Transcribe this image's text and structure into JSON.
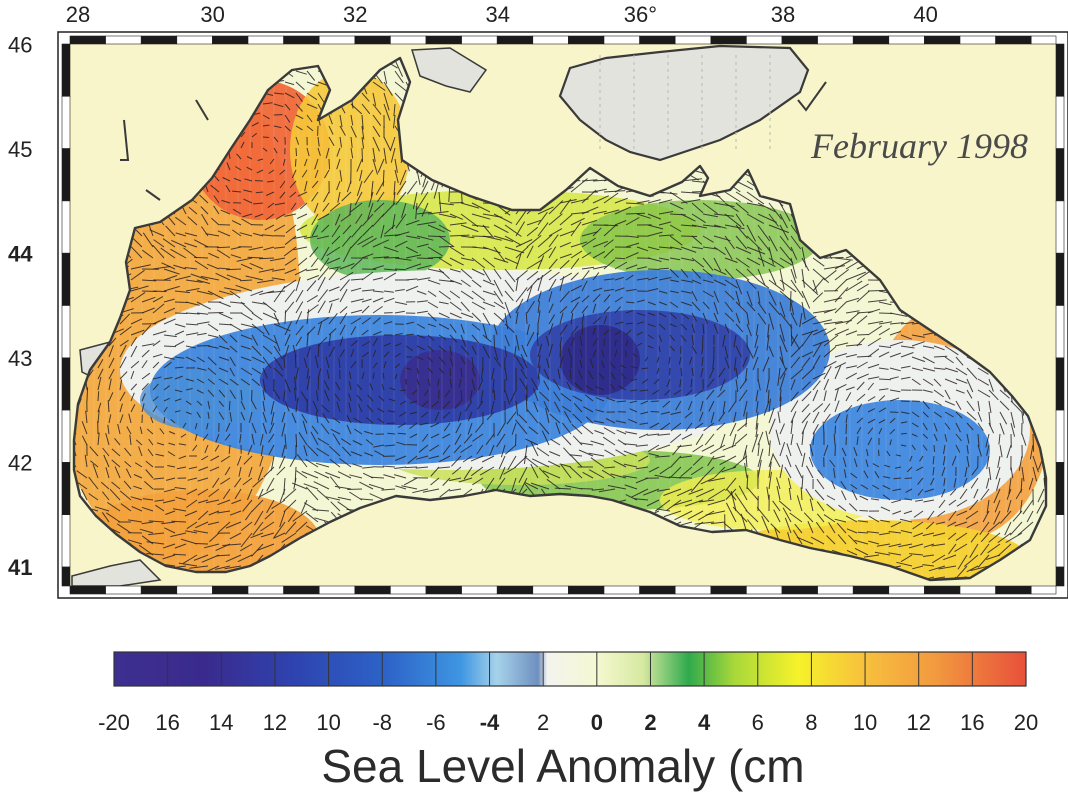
{
  "map": {
    "region": "Black Sea",
    "date_label": "February 1998",
    "lon_ticks": [
      {
        "value": 28,
        "label": "28"
      },
      {
        "value": 30,
        "label": "30"
      },
      {
        "value": 32,
        "label": "32"
      },
      {
        "value": 34,
        "label": "34"
      },
      {
        "value": 36,
        "label": "36°"
      },
      {
        "value": 38,
        "label": "38"
      },
      {
        "value": 40,
        "label": "40"
      }
    ],
    "lat_ticks": [
      {
        "value": 46,
        "label": "46",
        "bold": false
      },
      {
        "value": 45,
        "label": "45",
        "bold": false
      },
      {
        "value": 44,
        "label": "44",
        "bold": true
      },
      {
        "value": 43,
        "label": "43",
        "bold": false
      },
      {
        "value": 42,
        "label": "42",
        "bold": false
      },
      {
        "value": 41,
        "label": "41",
        "bold": true
      }
    ],
    "colors": {
      "land": "#f7f5c9",
      "ice_land": "#e3e3de",
      "coast": "#3a3a3a",
      "vector": "#2a2222",
      "frame_dark": "#1a1a1a"
    }
  },
  "colorbar": {
    "title": "Sea Level Anomaly (cm",
    "tick_labels": [
      {
        "label": "-20",
        "bold": false
      },
      {
        "label": "16",
        "bold": false
      },
      {
        "label": "14",
        "bold": false
      },
      {
        "label": "12",
        "bold": false
      },
      {
        "label": "10",
        "bold": false
      },
      {
        "label": "-8",
        "bold": false
      },
      {
        "label": "-6",
        "bold": false
      },
      {
        "label": "-4",
        "bold": true
      },
      {
        "label": "2",
        "bold": false
      },
      {
        "label": "0",
        "bold": true
      },
      {
        "label": "2",
        "bold": true
      },
      {
        "label": "4",
        "bold": true
      },
      {
        "label": "6",
        "bold": false
      },
      {
        "label": "8",
        "bold": false
      },
      {
        "label": "10",
        "bold": false
      },
      {
        "label": "12",
        "bold": false
      },
      {
        "label": "16",
        "bold": false
      },
      {
        "label": "20",
        "bold": false
      }
    ],
    "colors": [
      "#3d2f8f",
      "#3a2a8e",
      "#3130a0",
      "#2a55c0",
      "#2e6fd0",
      "#3b8ee0",
      "#5aa9e6",
      "#a9cfe6",
      "#5d7fb0",
      "#f3f3ef",
      "#f6f8c8",
      "#c8e090",
      "#2eaa4a",
      "#8fcf3a",
      "#f7f32a",
      "#f7c53a",
      "#f3a13c",
      "#ea6a3c"
    ]
  }
}
